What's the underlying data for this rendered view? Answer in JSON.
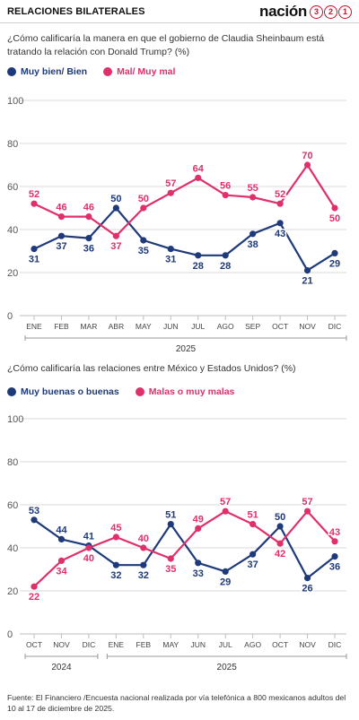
{
  "header": {
    "title": "RELACIONES BILATERALES",
    "brand_word": "nación",
    "brand_digits": [
      "3",
      "2",
      "1"
    ]
  },
  "colors": {
    "blue": "#1f3a7a",
    "pink": "#e0306a",
    "grid": "#d9d9d9",
    "axis": "#999999",
    "brand_red": "#c8102e"
  },
  "chart1": {
    "question": "¿Cómo calificaría la manera en que el gobierno de Claudia Sheinbaum está tratando la relación con Donald Trump? (%)",
    "legend": [
      {
        "label": "Muy bien/ Bien",
        "color": "#1f3a7a"
      },
      {
        "label": "Mal/ Muy mal",
        "color": "#e0306a"
      }
    ]
  },
  "chart2": {
    "question": "¿Cómo calificaría las relaciones entre México y Estados Unidos? (%)",
    "legend": [
      {
        "label": "Muy buenas o buenas",
        "color": "#1f3a7a"
      },
      {
        "label": "Malas o muy malas",
        "color": "#e0306a"
      }
    ]
  },
  "chart_data": [
    {
      "type": "line",
      "categories": [
        "ENE",
        "FEB",
        "MAR",
        "ABR",
        "MAY",
        "JUN",
        "JUL",
        "AGO",
        "SEP",
        "OCT",
        "NOV",
        "DIC"
      ],
      "year_groups": [
        {
          "label": "2025",
          "start": 0,
          "end": 11
        }
      ],
      "series": [
        {
          "name": "Muy bien/ Bien",
          "color": "#1f3a7a",
          "values": [
            31,
            37,
            36,
            50,
            35,
            31,
            28,
            28,
            38,
            43,
            21,
            29
          ]
        },
        {
          "name": "Mal/ Muy mal",
          "color": "#e0306a",
          "values": [
            52,
            46,
            46,
            37,
            50,
            57,
            64,
            56,
            55,
            52,
            70,
            50
          ]
        }
      ],
      "ylim": [
        0,
        100
      ],
      "yticks": [
        0,
        20,
        40,
        60,
        80,
        100
      ],
      "grid": true
    },
    {
      "type": "line",
      "categories": [
        "OCT",
        "NOV",
        "DIC",
        "ENE",
        "FEB",
        "MAY",
        "JUN",
        "JUL",
        "AGO",
        "OCT",
        "NOV",
        "DIC"
      ],
      "year_groups": [
        {
          "label": "2024",
          "start": 0,
          "end": 2
        },
        {
          "label": "2025",
          "start": 3,
          "end": 11
        }
      ],
      "series": [
        {
          "name": "Muy buenas o buenas",
          "color": "#1f3a7a",
          "values": [
            53,
            44,
            41,
            32,
            32,
            51,
            33,
            29,
            37,
            50,
            26,
            36
          ]
        },
        {
          "name": "Malas o muy malas",
          "color": "#e0306a",
          "values": [
            22,
            34,
            40,
            45,
            40,
            35,
            49,
            57,
            51,
            42,
            57,
            43
          ]
        }
      ],
      "ylim": [
        0,
        100
      ],
      "yticks": [
        0,
        20,
        40,
        60,
        80,
        100
      ],
      "grid": true
    }
  ],
  "source": "Fuente: El Financiero /Encuesta nacional realizada por vía telefónica a 800 mexicanos adultos del 10 al 17 de diciembre de 2025."
}
